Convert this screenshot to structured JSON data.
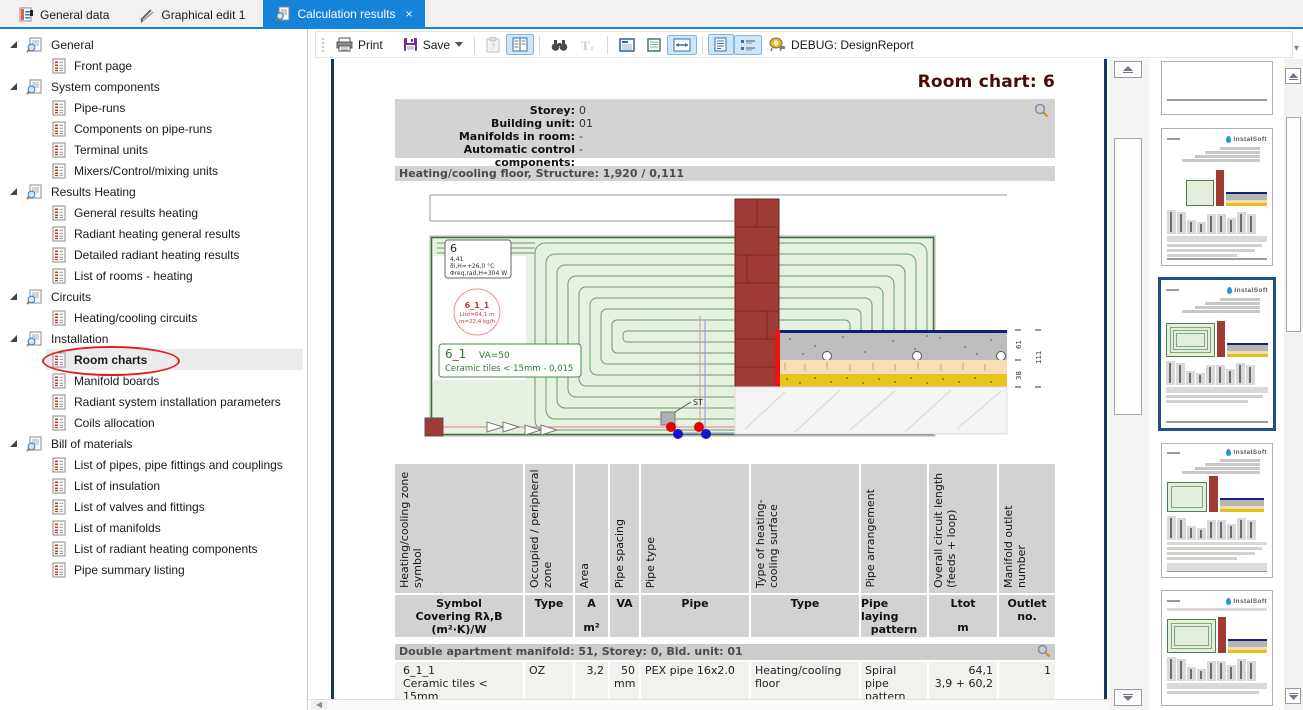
{
  "tabs": [
    {
      "label": "General data",
      "active": false
    },
    {
      "label": "Graphical edit 1",
      "active": false
    },
    {
      "label": "Calculation results",
      "active": true,
      "close": "×"
    }
  ],
  "tree": {
    "groups": [
      {
        "label": "General",
        "children": [
          "Front page"
        ]
      },
      {
        "label": "System components",
        "children": [
          "Pipe-runs",
          "Components on pipe-runs",
          "Terminal units",
          "Mixers/Control/mixing units"
        ]
      },
      {
        "label": "Results Heating",
        "children": [
          "General results heating",
          "Radiant heating general results",
          "Detailed radiant heating results",
          "List of rooms - heating"
        ]
      },
      {
        "label": "Circuits",
        "children": [
          "Heating/cooling circuits"
        ]
      },
      {
        "label": "Installation",
        "children": [
          "Room charts",
          "Manifold boards",
          "Radiant system installation parameters",
          "Coils allocation"
        ]
      },
      {
        "label": "Bill of materials",
        "children": [
          "List of pipes, pipe fittings and couplings",
          "List of insulation",
          "List of valves and fittings",
          "List of manifolds",
          "List of radiant heating components",
          "Pipe summary listing"
        ]
      }
    ],
    "selected": {
      "group": 4,
      "child": 0
    }
  },
  "toolbar": {
    "print": "Print",
    "save": "Save",
    "debug": "DEBUG: DesignReport"
  },
  "report": {
    "title": "Room chart: 6",
    "info": [
      {
        "label": "Storey:",
        "value": "0"
      },
      {
        "label": "Building unit:",
        "value": "01"
      },
      {
        "label": "Manifolds in room:",
        "value": "-"
      },
      {
        "label": "Automatic control components:",
        "value": "-"
      }
    ],
    "structure_bar": "Heating/cooling floor, Structure: 1,920 / 0,111",
    "section_bar": "Double apartment manifold: 51, Storey: 0, Bld. unit: 01"
  },
  "drawing": {
    "room_tag": {
      "number": "6",
      "area": "4,41",
      "temp": "ϑi,H=+26,0 °C",
      "power": "Φreq,rad,H=304 W"
    },
    "circuit": {
      "id": "6_1_1",
      "length": "Ltot=64,1 m",
      "flow": "m=22,4 kg/h"
    },
    "zone": {
      "id": "6_1",
      "va": "VA=50",
      "covering": "Ceramic tiles < 15mm - 0,015"
    },
    "sensor": "ST",
    "dims": [
      "61",
      "38",
      "111"
    ]
  },
  "table": {
    "columns": [
      {
        "header": "Heating/cooling zone symbol",
        "symbol": [
          "Symbol",
          "Covering Rλ,B"
        ],
        "unit": "(m²·K)/W"
      },
      {
        "header": "Occupied / peripheral zone",
        "symbol": [
          "Type"
        ],
        "unit": ""
      },
      {
        "header": "Area",
        "symbol": [
          "A"
        ],
        "unit": "m²"
      },
      {
        "header": "Pipe spacing",
        "symbol": [
          "VA"
        ],
        "unit": ""
      },
      {
        "header": "Pipe type",
        "symbol": [
          "Pipe"
        ],
        "unit": ""
      },
      {
        "header": "Type of heating-cooling surface",
        "symbol": [
          "Type"
        ],
        "unit": ""
      },
      {
        "header": "Pipe arrangement",
        "symbol": [
          "Pipe laying",
          "pattern"
        ],
        "unit": ""
      },
      {
        "header": "Overall circuit length (feeds + loop)",
        "symbol": [
          "Ltot"
        ],
        "unit": "m"
      },
      {
        "header": "Manifold outlet number",
        "symbol": [
          "Outlet",
          "no."
        ],
        "unit": ""
      }
    ],
    "row": [
      [
        "6_1_1",
        "Ceramic tiles < 15mm",
        "- 0,015"
      ],
      [
        "OZ"
      ],
      [
        "3,2"
      ],
      [
        "50",
        "mm"
      ],
      [
        "PEX pipe 16x2.0"
      ],
      [
        "Heating/cooling floor"
      ],
      [
        "Spiral pipe",
        "pattern"
      ],
      [
        "64,1",
        "3,9 + 60,2"
      ],
      [
        "1"
      ]
    ],
    "row_align": [
      "left",
      "left",
      "right",
      "right",
      "left",
      "left",
      "left",
      "right",
      "right"
    ]
  },
  "thumbnails": {
    "brand": "InstalSoft"
  }
}
